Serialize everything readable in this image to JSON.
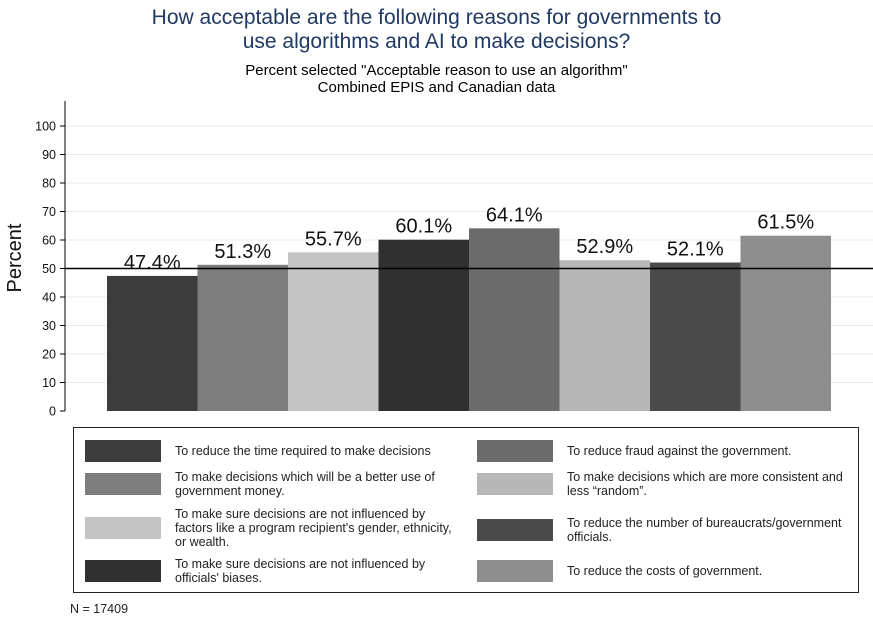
{
  "title_line1": "How acceptable are the following reasons for governments to",
  "title_line2": "use algorithms and AI to make decisions?",
  "subtitle_line1": "Percent selected \"Acceptable reason to use an algorithm\"",
  "subtitle_line2": "Combined EPIS and Canadian data",
  "note": "N = 17409",
  "chart_data": {
    "type": "bar",
    "ylabel": "Percent",
    "ylim": [
      0,
      100
    ],
    "yticks": [
      0,
      10,
      20,
      30,
      40,
      50,
      60,
      70,
      80,
      90,
      100
    ],
    "reference_line": 50,
    "grid": true,
    "legend_position": "bottom",
    "series": [
      {
        "name": "To reduce the time required to make decisions",
        "value": 47.4,
        "label": "47.4%",
        "color": "#3c3c3c"
      },
      {
        "name": "To make decisions which will be a better use of government money.",
        "value": 51.3,
        "label": "51.3%",
        "color": "#7d7d7d"
      },
      {
        "name": "To make sure decisions are not influenced by factors like a program recipient's gender, ethnicity, or wealth.",
        "value": 55.7,
        "label": "55.7%",
        "color": "#c4c4c4"
      },
      {
        "name": "To make sure decisions are not influenced by officials' biases.",
        "value": 60.1,
        "label": "60.1%",
        "color": "#303030"
      },
      {
        "name": "To reduce fraud against the government.",
        "value": 64.1,
        "label": "64.1%",
        "color": "#6b6b6b"
      },
      {
        "name": "To make decisions which are more consistent and less “random”.",
        "value": 52.9,
        "label": "52.9%",
        "color": "#b7b7b7"
      },
      {
        "name": "To reduce the number of bureaucrats/government officials.",
        "value": 52.1,
        "label": "52.1%",
        "color": "#4a4a4a"
      },
      {
        "name": "To reduce the costs of government.",
        "value": 61.5,
        "label": "61.5%",
        "color": "#8e8e8e"
      }
    ]
  }
}
